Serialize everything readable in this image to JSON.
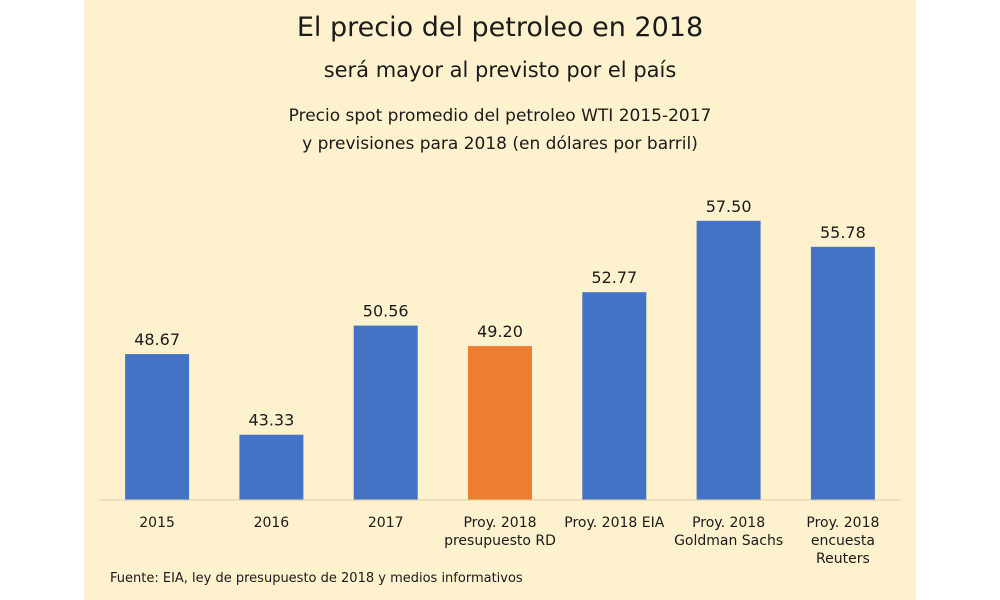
{
  "header": {
    "title": "El precio del petroleo en 2018",
    "subtitle": "será mayor al previsto por el país",
    "chart_title_line1": "Precio spot promedio del petroleo WTI 2015-2017",
    "chart_title_line2": "y previsiones para 2018 (en dólares por barril)"
  },
  "footer": {
    "source": "Fuente: EIA, ley de presupuesto de 2018 y medios informativos"
  },
  "colors": {
    "background": "#fdf2cd",
    "bar_default": "#4472c4",
    "bar_highlight": "#ed7d31"
  },
  "chart_data": {
    "type": "bar",
    "title": "Precio spot promedio del petroleo WTI 2015-2017 y previsiones para 2018 (en dólares por barril)",
    "categories": [
      "2015",
      "2016",
      "2017",
      "Proy. 2018 presupuesto RD",
      "Proy. 2018 EIA",
      "Proy. 2018 Goldman Sachs",
      "Proy. 2018 encuesta Reuters"
    ],
    "category_lines": [
      [
        "2015"
      ],
      [
        "2016"
      ],
      [
        "2017"
      ],
      [
        "Proy. 2018",
        "presupuesto RD"
      ],
      [
        "Proy. 2018 EIA"
      ],
      [
        "Proy. 2018",
        "Goldman Sachs"
      ],
      [
        "Proy. 2018",
        "encuesta",
        "Reuters"
      ]
    ],
    "values": [
      48.67,
      43.33,
      50.56,
      49.2,
      52.77,
      57.5,
      55.78
    ],
    "value_labels": [
      "48.67",
      "43.33",
      "50.56",
      "49.20",
      "52.77",
      "57.50",
      "55.78"
    ],
    "highlight_index": 3,
    "xlabel": "",
    "ylabel": "",
    "ylim": [
      39,
      58
    ],
    "grid": false,
    "legend": "none"
  }
}
